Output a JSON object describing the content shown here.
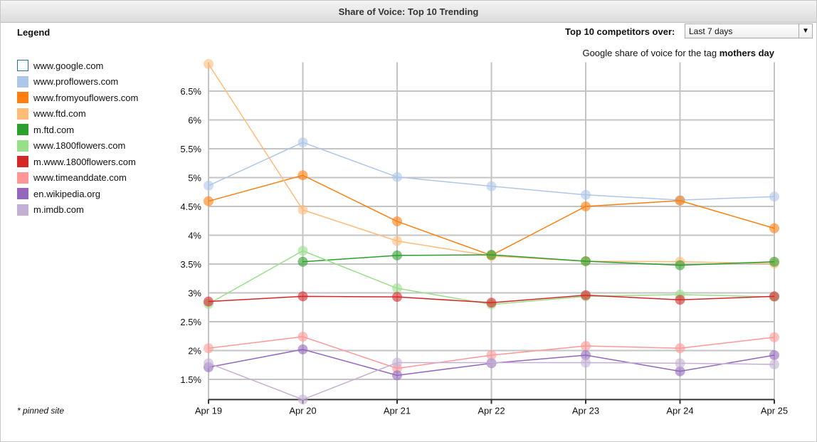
{
  "window": {
    "title": "Share of Voice: Top 10 Trending"
  },
  "legend": {
    "title": "Legend",
    "note": "* pinned site"
  },
  "controls": {
    "label": "Top 10 competitors over:",
    "selected": "Last 7 days",
    "arrow_icon": "chevron-down-icon"
  },
  "subtitle": {
    "prefix": "Google share of voice for the tag ",
    "tag": "mothers day"
  },
  "chart_data": {
    "type": "line",
    "categories": [
      "Apr 19",
      "Apr 20",
      "Apr 21",
      "Apr 22",
      "Apr 23",
      "Apr 24",
      "Apr 25"
    ],
    "yticks": [
      "1.5%",
      "2%",
      "2.5%",
      "3%",
      "3.5%",
      "4%",
      "4.5%",
      "5%",
      "5.5%",
      "6%",
      "6.5%"
    ],
    "ytick_values": [
      1.5,
      2,
      2.5,
      3,
      3.5,
      4,
      4.5,
      5,
      5.5,
      6,
      6.5
    ],
    "ylim": [
      1.15,
      7.0
    ],
    "yunit": "%",
    "grid": true,
    "legend_placement": "left",
    "series": [
      {
        "name": "www.google.com",
        "color": "#ffffff",
        "outline": "#2a6f8f",
        "values": [
          null,
          null,
          null,
          null,
          null,
          null,
          null
        ]
      },
      {
        "name": "www.proflowers.com",
        "color": "#aec7e8",
        "values": [
          4.86,
          5.61,
          5.01,
          4.85,
          4.7,
          4.61,
          4.67
        ]
      },
      {
        "name": "www.fromyouflowers.com",
        "color": "#ff7f0e",
        "values": [
          4.59,
          5.04,
          4.24,
          3.65,
          4.5,
          4.6,
          4.12
        ]
      },
      {
        "name": "www.ftd.com",
        "color": "#ffbb78",
        "values": [
          6.97,
          4.44,
          3.9,
          3.64,
          3.55,
          3.54,
          3.51
        ]
      },
      {
        "name": "m.ftd.com",
        "color": "#2ca02c",
        "values": [
          null,
          3.54,
          3.65,
          3.66,
          3.55,
          3.48,
          3.54
        ]
      },
      {
        "name": "www.1800flowers.com",
        "color": "#98df8a",
        "values": [
          2.81,
          3.73,
          3.08,
          2.8,
          2.94,
          2.97,
          2.93
        ]
      },
      {
        "name": "m.www.1800flowers.com",
        "color": "#d62728",
        "values": [
          2.85,
          2.94,
          2.93,
          2.83,
          2.96,
          2.88,
          2.94
        ]
      },
      {
        "name": "www.timeanddate.com",
        "color": "#ff9896",
        "values": [
          2.04,
          2.24,
          1.69,
          1.92,
          2.08,
          2.04,
          2.23
        ]
      },
      {
        "name": "en.wikipedia.org",
        "color": "#9467bd",
        "values": [
          1.71,
          2.02,
          1.57,
          1.78,
          1.92,
          1.64,
          1.92
        ]
      },
      {
        "name": "m.imdb.com",
        "color": "#c5b0d5",
        "values": [
          1.78,
          1.15,
          1.79,
          1.79,
          1.79,
          1.78,
          1.76
        ]
      }
    ]
  }
}
